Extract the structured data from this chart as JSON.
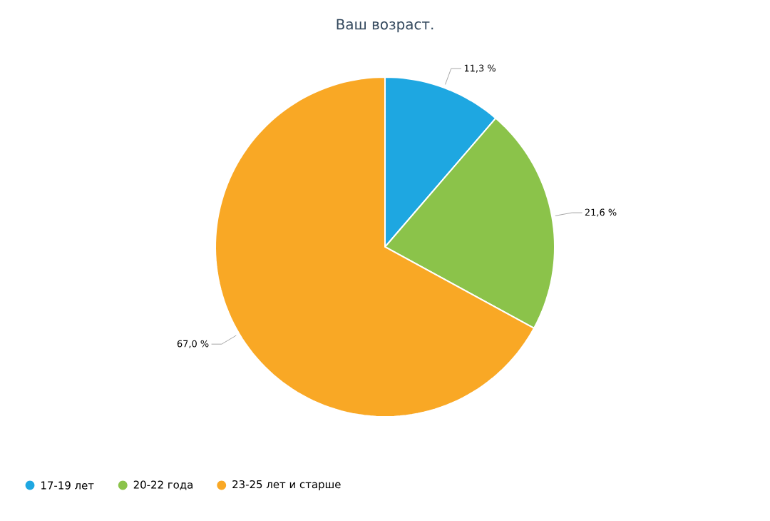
{
  "chart_data": {
    "type": "pie",
    "title": "Ваш возраст.",
    "categories": [
      "17-19 лет",
      "20-22 года",
      "23-25 лет и старше"
    ],
    "values": [
      11.3,
      21.6,
      67.0
    ],
    "value_labels": [
      "11,3 %",
      "21,6 %",
      "67,0 %"
    ],
    "colors": [
      "#1ea7e1",
      "#8bc34a",
      "#f9a825"
    ],
    "legend": "bottom"
  }
}
